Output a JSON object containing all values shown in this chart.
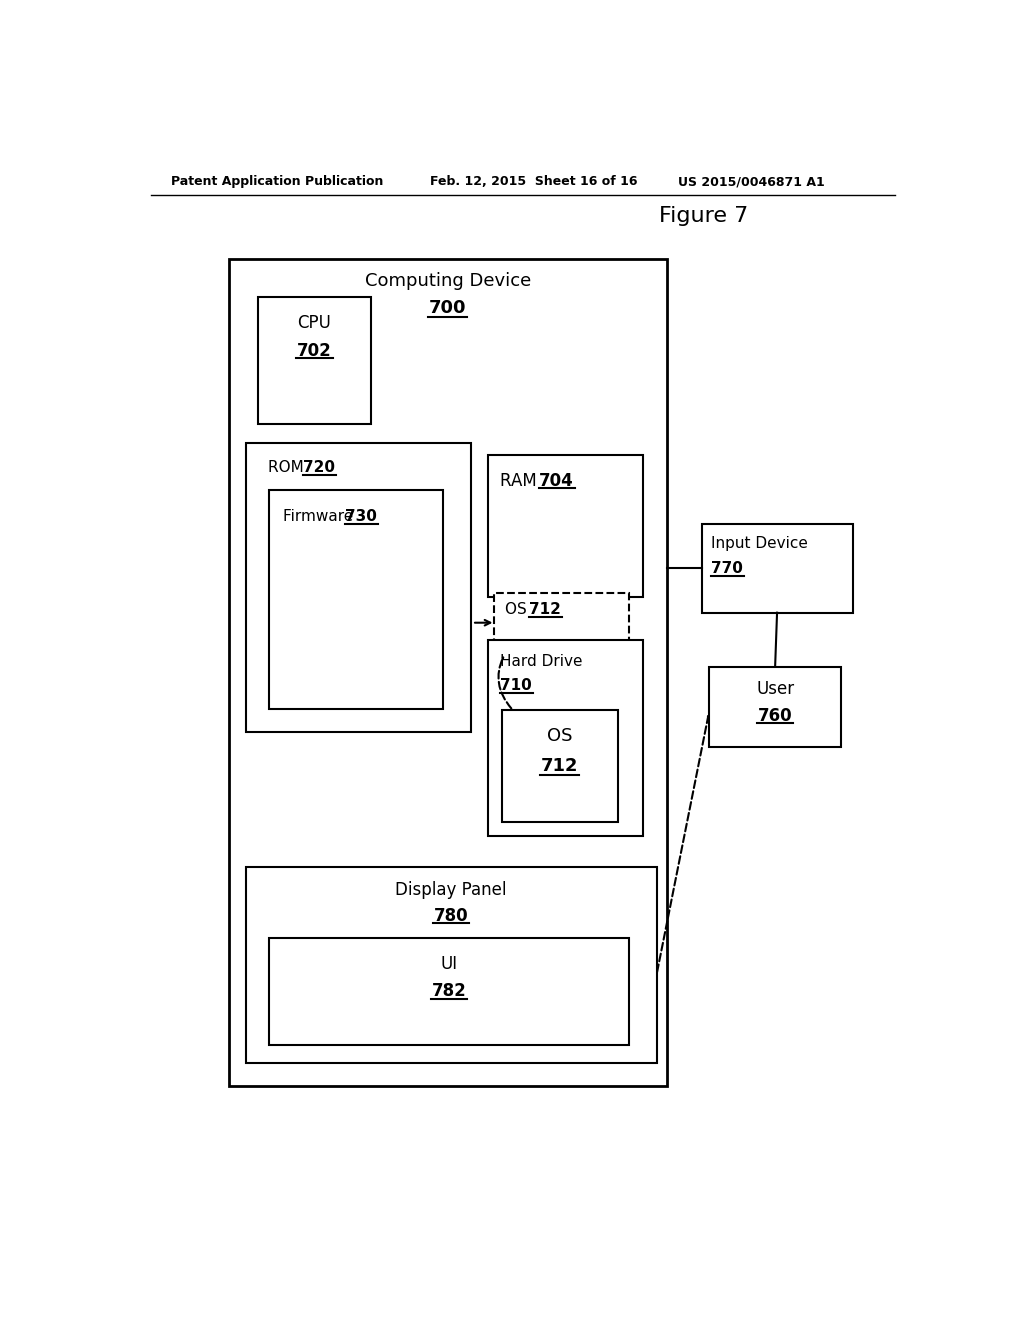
{
  "bg_color": "#ffffff",
  "header_left": "Patent Application Publication",
  "header_mid": "Feb. 12, 2015  Sheet 16 of 16",
  "header_right": "US 2015/0046871 A1",
  "figure_label": "Figure 7",
  "computing_device_label": "Computing Device",
  "computing_device_num": "700",
  "cpu_label": "CPU",
  "cpu_num": "702",
  "rom_label": "ROM",
  "rom_num": "720",
  "firmware_label": "Firmware",
  "firmware_num": "730",
  "ram_label": "RAM",
  "ram_num": "704",
  "os_ram_label": "OS",
  "os_ram_num": "712",
  "harddrive_label": "Hard Drive",
  "harddrive_num": "710",
  "os_hd_label": "OS",
  "os_hd_num": "712",
  "input_device_label": "Input Device",
  "input_device_num": "770",
  "user_label": "User",
  "user_num": "760",
  "display_panel_label": "Display Panel",
  "display_panel_num": "780",
  "ui_label": "UI",
  "ui_num": "782"
}
